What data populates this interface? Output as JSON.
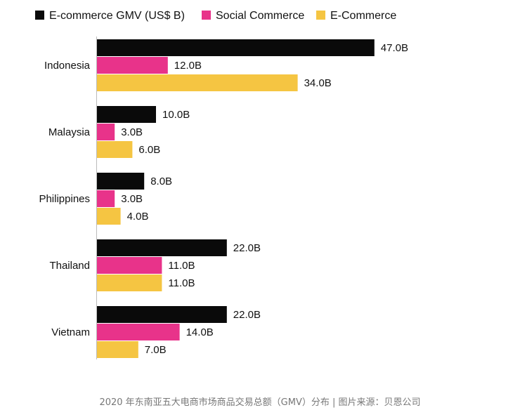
{
  "chart_data": {
    "type": "bar",
    "orientation": "horizontal",
    "categories": [
      "Indonesia",
      "Malaysia",
      "Philippines",
      "Thailand",
      "Vietnam"
    ],
    "series": [
      {
        "name": "E-commerce GMV (US$ B)",
        "color": "#0a0a0a",
        "values": [
          47.0,
          10.0,
          8.0,
          22.0,
          22.0
        ]
      },
      {
        "name": "Social Commerce",
        "color": "#e8338a",
        "values": [
          12.0,
          3.0,
          3.0,
          11.0,
          14.0
        ]
      },
      {
        "name": "E-Commerce",
        "color": "#f5c542",
        "values": [
          34.0,
          6.0,
          4.0,
          11.0,
          7.0
        ]
      }
    ],
    "value_suffix": "B",
    "legend_position": "top-left",
    "grid": false
  },
  "caption": "2020 年东南亚五大电商市场商品交易总额（GMV）分布 | 图片来源：贝恩公司"
}
